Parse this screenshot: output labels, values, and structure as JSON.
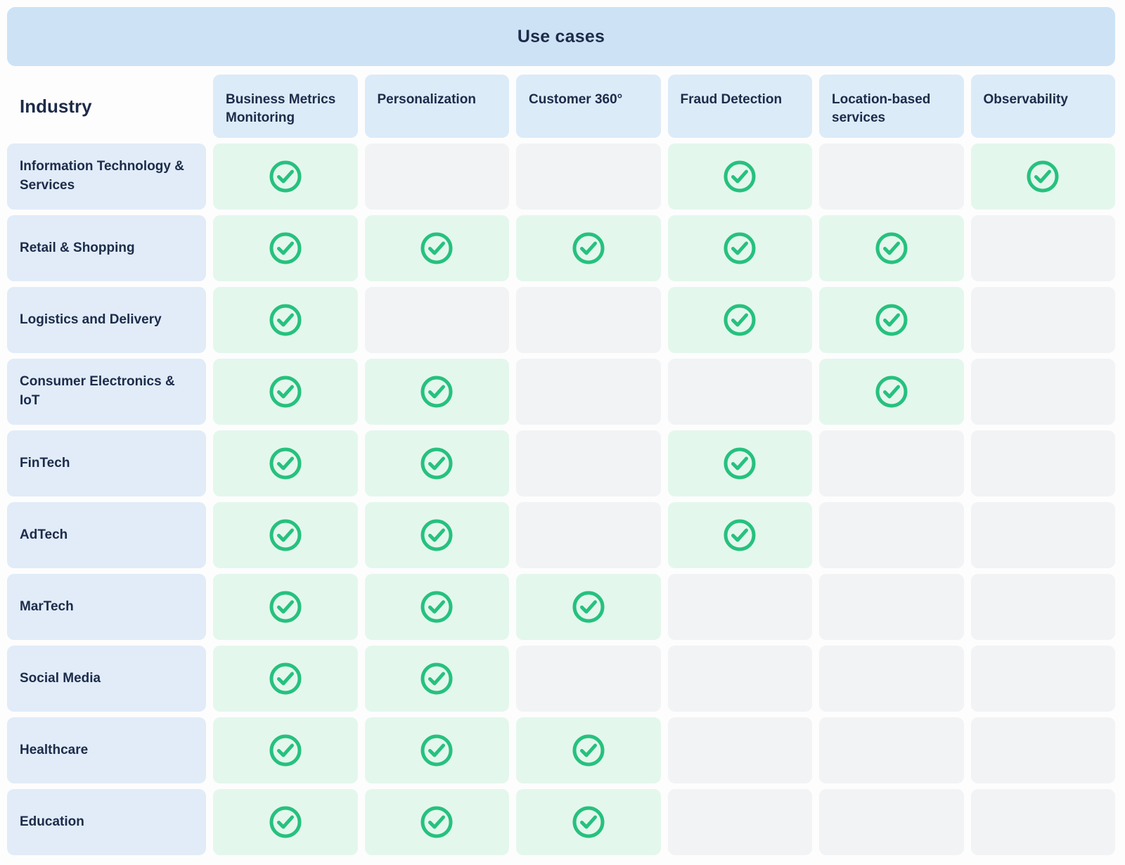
{
  "banner": {
    "title": "Use cases"
  },
  "chart_data": {
    "type": "table",
    "title": "Use cases",
    "row_header": "Industry",
    "columns": [
      "Business Metrics Monitoring",
      "Personalization",
      "Customer 360°",
      "Fraud Detection",
      "Location-based services",
      "Observability"
    ],
    "rows": [
      {
        "label": "Information Technology & Services",
        "checks": [
          true,
          false,
          false,
          true,
          false,
          true
        ]
      },
      {
        "label": "Retail & Shopping",
        "checks": [
          true,
          true,
          true,
          true,
          true,
          false
        ]
      },
      {
        "label": "Logistics and Delivery",
        "checks": [
          true,
          false,
          false,
          true,
          true,
          false
        ]
      },
      {
        "label": "Consumer Electronics & IoT",
        "checks": [
          true,
          true,
          false,
          false,
          true,
          false
        ]
      },
      {
        "label": "FinTech",
        "checks": [
          true,
          true,
          false,
          true,
          false,
          false
        ]
      },
      {
        "label": "AdTech",
        "checks": [
          true,
          true,
          false,
          true,
          false,
          false
        ]
      },
      {
        "label": "MarTech",
        "checks": [
          true,
          true,
          true,
          false,
          false,
          false
        ]
      },
      {
        "label": "Social Media",
        "checks": [
          true,
          true,
          false,
          false,
          false,
          false
        ]
      },
      {
        "label": "Healthcare",
        "checks": [
          true,
          true,
          true,
          false,
          false,
          false
        ]
      },
      {
        "label": "Education",
        "checks": [
          true,
          true,
          true,
          false,
          false,
          false
        ]
      }
    ]
  },
  "colors": {
    "check_green": "#26c17e",
    "checked_cell_bg": "#e4f7ed",
    "empty_cell_bg": "#f2f3f4",
    "banner_bg": "#cde2f5",
    "header_cell_bg": "#dcebf8",
    "label_cell_bg": "#e1ecf8",
    "text_navy": "#1d2b4a"
  },
  "icons": {
    "check_circle": "green ring with checkmark inside"
  }
}
